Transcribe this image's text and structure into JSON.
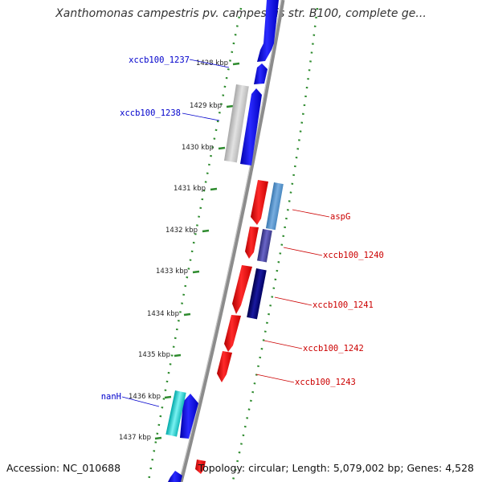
{
  "title": "Xanthomonas campestris pv. campestris str. B100, complete ge...",
  "footer": {
    "accession_label": "Accession:",
    "accession": "NC_010688",
    "topology_label": "Topology:",
    "topology": "circular",
    "length_label": "Length:",
    "length": "5,079,002 bp",
    "genes_label": "Genes:",
    "genes": "4,528"
  },
  "ticks": [
    {
      "label": "1428 kbp"
    },
    {
      "label": "1429 kbp"
    },
    {
      "label": "1430 kbp"
    },
    {
      "label": "1431 kbp"
    },
    {
      "label": "1432 kbp"
    },
    {
      "label": "1433 kbp"
    },
    {
      "label": "1434 kbp"
    },
    {
      "label": "1435 kbp"
    },
    {
      "label": "1436 kbp"
    },
    {
      "label": "1437 kbp"
    }
  ],
  "genes": [
    {
      "label": "xccb100_1237",
      "color": "#0000cc"
    },
    {
      "label": "xccb100_1238",
      "color": "#0000cc"
    },
    {
      "label": "aspG",
      "color": "#cc0000"
    },
    {
      "label": "xccb100_1240",
      "color": "#cc0000"
    },
    {
      "label": "xccb100_1241",
      "color": "#cc0000"
    },
    {
      "label": "xccb100_1242",
      "color": "#cc0000"
    },
    {
      "label": "xccb100_1243",
      "color": "#cc0000"
    },
    {
      "label": "nanH",
      "color": "#0000cc"
    }
  ],
  "colors": {
    "backbone": "#8c8c8c",
    "tick_green": "#2e8b2e",
    "forward": "#1010ee",
    "reverse": "#ee1010"
  }
}
